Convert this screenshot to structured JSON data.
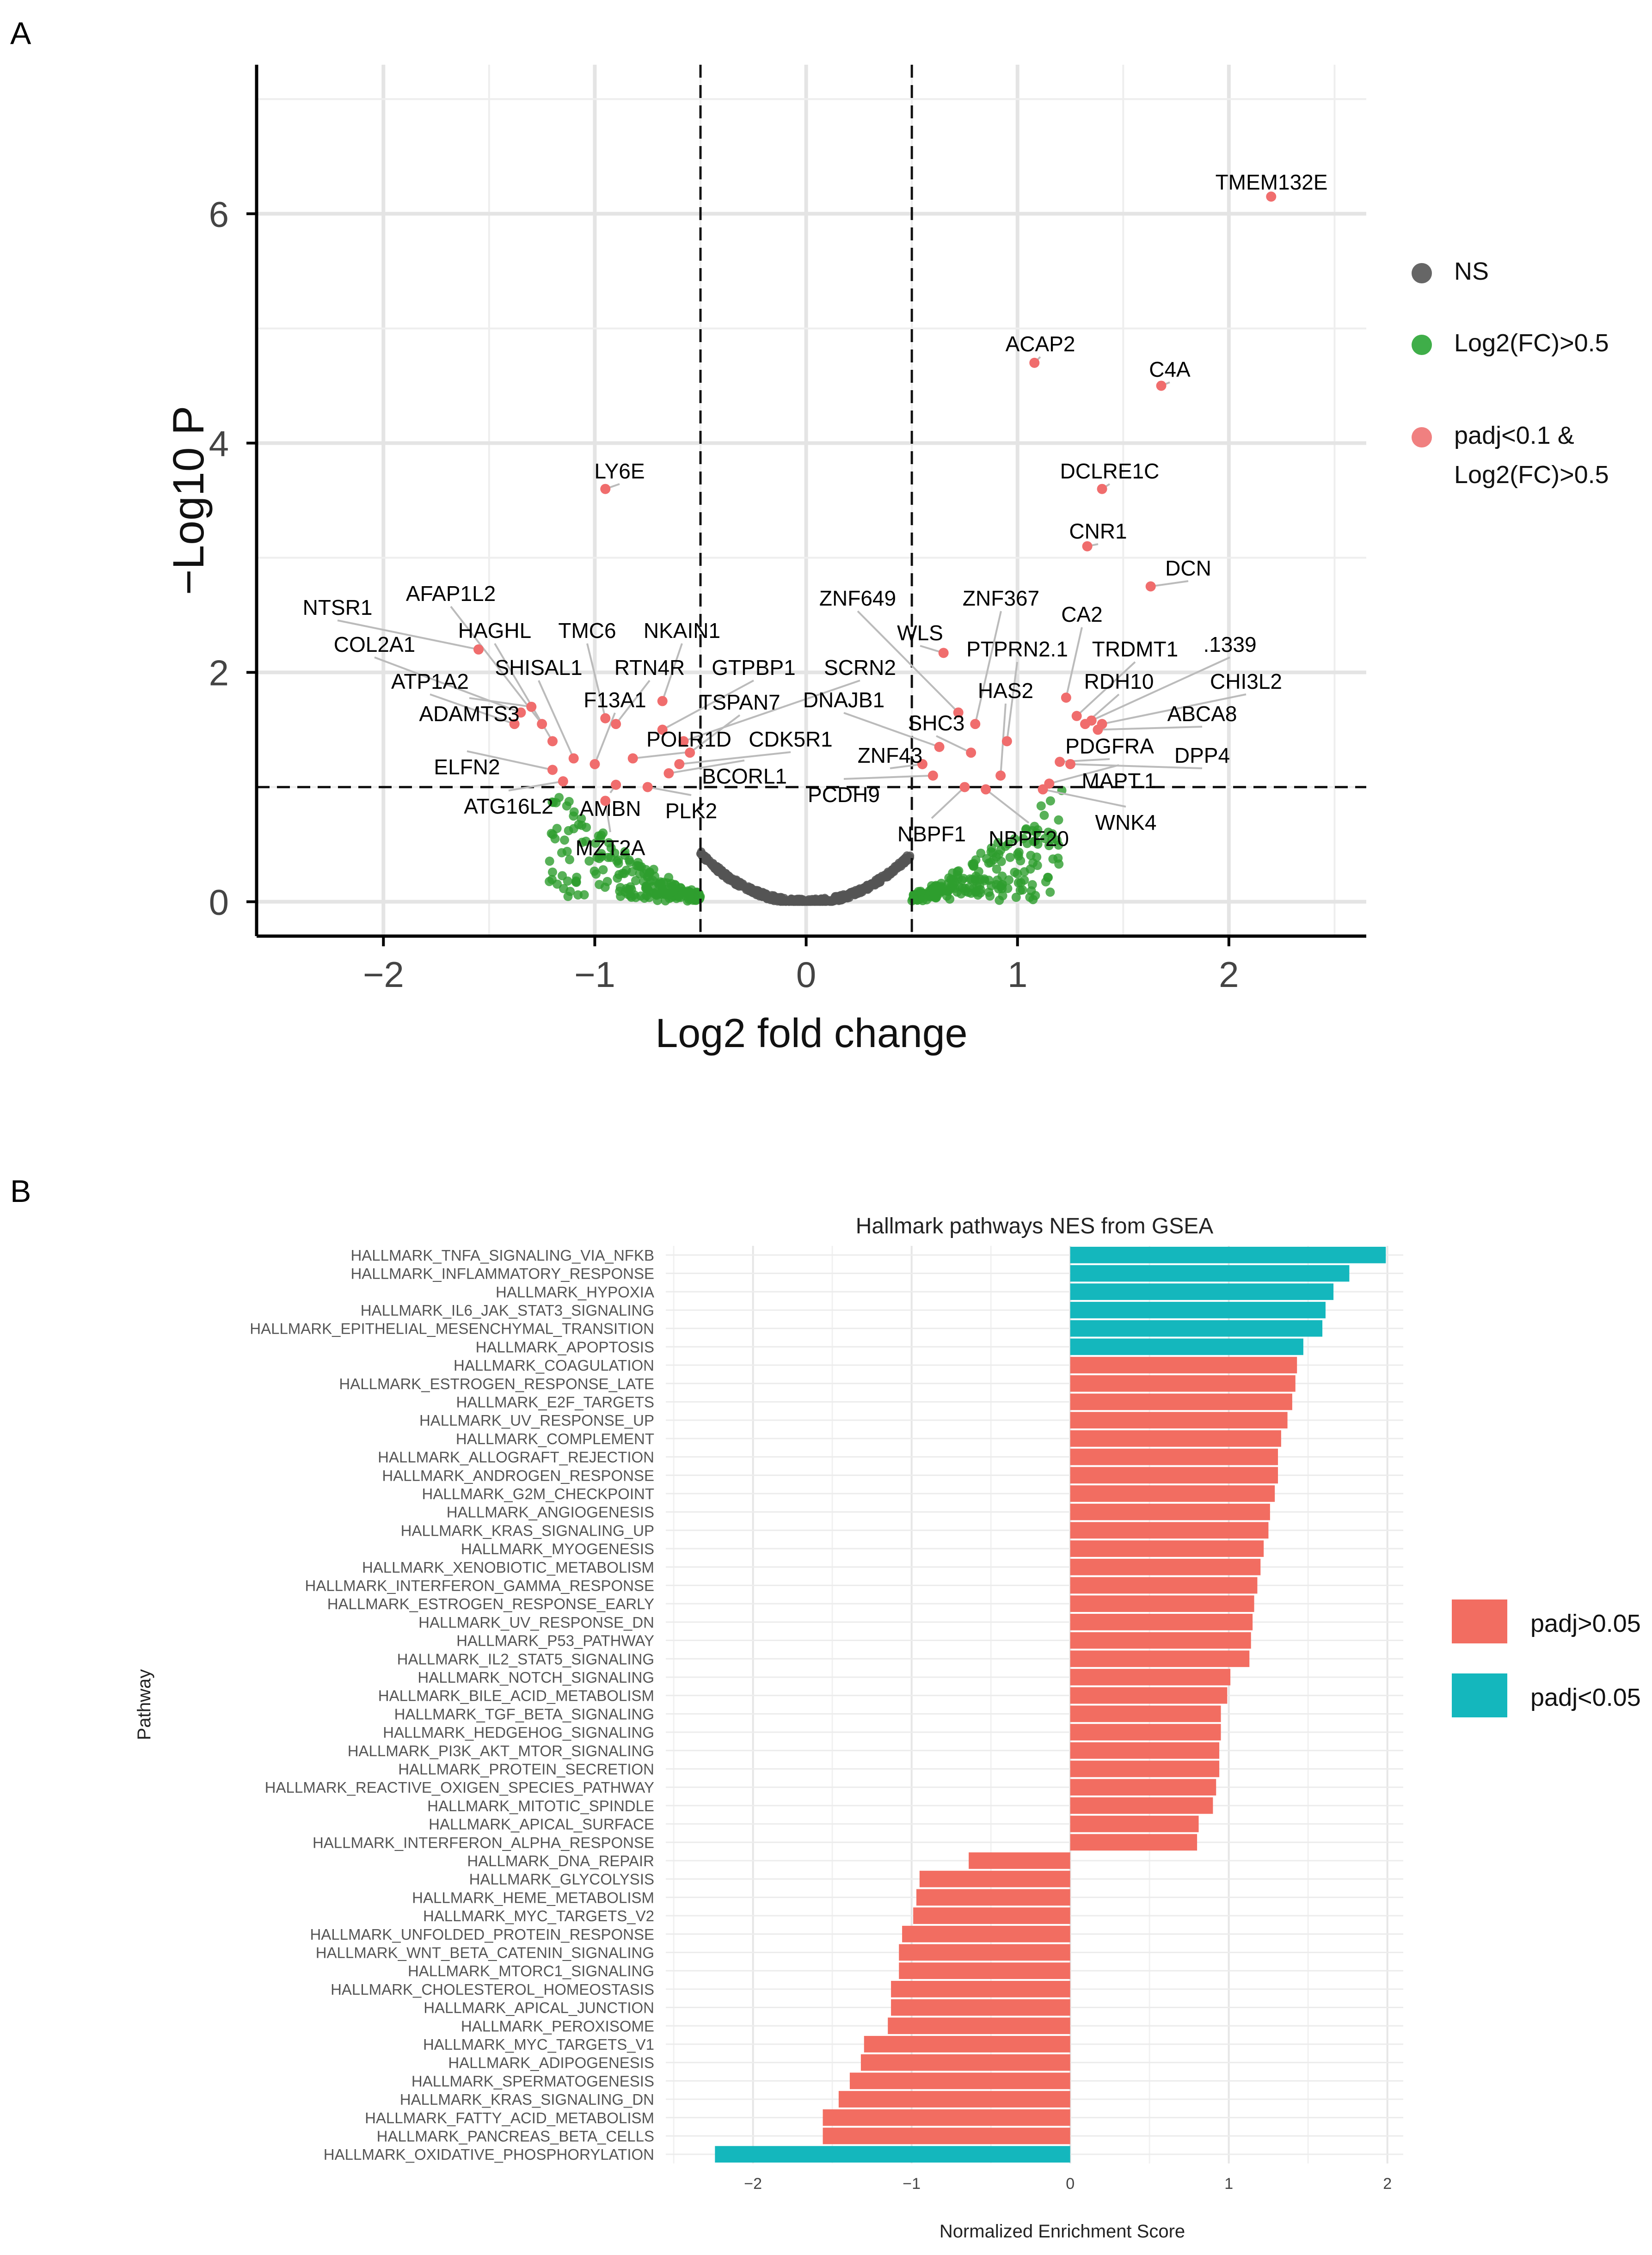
{
  "chart_data": [
    {
      "panel": "A",
      "type": "scatter",
      "xlabel": "Log2 fold change",
      "ylabel": "−Log10 P",
      "xlim": [
        -2.6,
        2.65
      ],
      "ylim": [
        -0.3,
        7.3
      ],
      "xticks": [
        -2,
        -1,
        0,
        1,
        2
      ],
      "xtick_labels": [
        "−2",
        "−1",
        "0",
        "1",
        "2"
      ],
      "yticks": [
        0,
        2,
        4,
        6
      ],
      "ytick_labels": [
        "0",
        "2",
        "4",
        "6"
      ],
      "grid": true,
      "thresholds": {
        "x": [
          -0.5,
          0.5
        ],
        "y": 1.0
      },
      "legend": [
        {
          "label": "NS",
          "color": "#666666"
        },
        {
          "label": "Log2(FC)>0.5",
          "color": "#3fae49"
        },
        {
          "label": "padj<0.1 &",
          "label2": "Log2(FC)>0.5",
          "color": "#f08080"
        }
      ],
      "labeled_points": [
        {
          "gene": "TMEM132E",
          "x": 2.2,
          "y": 6.15
        },
        {
          "gene": "ACAP2",
          "x": 1.08,
          "y": 4.7
        },
        {
          "gene": "C4A",
          "x": 1.68,
          "y": 4.5
        },
        {
          "gene": "DCLRE1C",
          "x": 1.4,
          "y": 3.6
        },
        {
          "gene": "LY6E",
          "x": -0.95,
          "y": 3.6
        },
        {
          "gene": "CNR1",
          "x": 1.33,
          "y": 3.1
        },
        {
          "gene": "DCN",
          "x": 1.63,
          "y": 2.75
        },
        {
          "gene": "CA2",
          "x": 1.23,
          "y": 1.78
        },
        {
          "gene": "TRDMT1",
          "x": 1.28,
          "y": 1.62
        },
        {
          "gene": ".1339",
          "x": 1.35,
          "y": 1.58
        },
        {
          "gene": "RDH10",
          "x": 1.32,
          "y": 1.55
        },
        {
          "gene": "CHI3L2",
          "x": 1.4,
          "y": 1.55
        },
        {
          "gene": "ABCA8",
          "x": 1.38,
          "y": 1.5
        },
        {
          "gene": "PDGFRA",
          "x": 1.2,
          "y": 1.22
        },
        {
          "gene": "DPP4",
          "x": 1.25,
          "y": 1.2
        },
        {
          "gene": "MAPT.1",
          "x": 1.15,
          "y": 1.03
        },
        {
          "gene": "WNK4",
          "x": 1.12,
          "y": 0.98
        },
        {
          "gene": "ZNF649",
          "x": 0.72,
          "y": 1.65
        },
        {
          "gene": "ZNF367",
          "x": 0.8,
          "y": 1.55
        },
        {
          "gene": "WLS",
          "x": 0.65,
          "y": 2.17
        },
        {
          "gene": "PTPRN2.1",
          "x": 0.95,
          "y": 1.4
        },
        {
          "gene": "HAS2",
          "x": 0.92,
          "y": 1.1
        },
        {
          "gene": "DNAJB1",
          "x": 0.63,
          "y": 1.35
        },
        {
          "gene": "SHC3",
          "x": 0.78,
          "y": 1.3
        },
        {
          "gene": "ZNF43",
          "x": 0.55,
          "y": 1.2
        },
        {
          "gene": "PCDH9",
          "x": 0.6,
          "y": 1.1
        },
        {
          "gene": "NBPF1",
          "x": 0.75,
          "y": 1.0
        },
        {
          "gene": "NBPF20",
          "x": 0.85,
          "y": 0.98
        },
        {
          "gene": "NTSR1",
          "x": -1.55,
          "y": 2.2
        },
        {
          "gene": "AFAP1L2",
          "x": -1.25,
          "y": 1.55
        },
        {
          "gene": "HAGHL",
          "x": -1.2,
          "y": 1.4
        },
        {
          "gene": "TMC6",
          "x": -0.95,
          "y": 1.6
        },
        {
          "gene": "NKAIN1",
          "x": -0.68,
          "y": 1.75
        },
        {
          "gene": "COL2A1",
          "x": -1.35,
          "y": 1.65
        },
        {
          "gene": "SHISAL1",
          "x": -1.1,
          "y": 1.25
        },
        {
          "gene": "RTN4R",
          "x": -0.9,
          "y": 1.55
        },
        {
          "gene": "GTPBP1",
          "x": -0.68,
          "y": 1.5
        },
        {
          "gene": "SCRN2",
          "x": -0.58,
          "y": 1.4
        },
        {
          "gene": "ATP1A2",
          "x": -1.38,
          "y": 1.55
        },
        {
          "gene": "F13A1",
          "x": -1.0,
          "y": 1.2
        },
        {
          "gene": "TSPAN7",
          "x": -0.55,
          "y": 1.3
        },
        {
          "gene": "ADAMTS3",
          "x": -1.3,
          "y": 1.7
        },
        {
          "gene": "POLR1D",
          "x": -0.82,
          "y": 1.25
        },
        {
          "gene": "CDK5R1",
          "x": -0.6,
          "y": 1.2
        },
        {
          "gene": "ELFN2",
          "x": -1.2,
          "y": 1.15
        },
        {
          "gene": "BCORL1",
          "x": -0.65,
          "y": 1.12
        },
        {
          "gene": "ATG16L2",
          "x": -1.15,
          "y": 1.05
        },
        {
          "gene": "AMBN",
          "x": -0.9,
          "y": 1.02
        },
        {
          "gene": "PLK2",
          "x": -0.75,
          "y": 1.0
        },
        {
          "gene": "MZT2A",
          "x": -0.95,
          "y": 0.88
        }
      ]
    },
    {
      "panel": "B",
      "type": "bar",
      "orientation": "horizontal",
      "title": "Hallmark pathways NES from GSEA",
      "xlabel": "Normalized Enrichment Score",
      "ylabel": "Pathway",
      "xlim": [
        -2.55,
        2.1
      ],
      "xticks": [
        -2,
        -1,
        0,
        1,
        2
      ],
      "xtick_labels": [
        "−2",
        "−1",
        "0",
        "1",
        "2"
      ],
      "legend": [
        {
          "label": "padj>0.05",
          "color": "#f26d61"
        },
        {
          "label": "padj<0.05",
          "color": "#14b7bd"
        }
      ],
      "categories": [
        "HALLMARK_TNFA_SIGNALING_VIA_NFKB",
        "HALLMARK_INFLAMMATORY_RESPONSE",
        "HALLMARK_HYPOXIA",
        "HALLMARK_IL6_JAK_STAT3_SIGNALING",
        "HALLMARK_EPITHELIAL_MESENCHYMAL_TRANSITION",
        "HALLMARK_APOPTOSIS",
        "HALLMARK_COAGULATION",
        "HALLMARK_ESTROGEN_RESPONSE_LATE",
        "HALLMARK_E2F_TARGETS",
        "HALLMARK_UV_RESPONSE_UP",
        "HALLMARK_COMPLEMENT",
        "HALLMARK_ALLOGRAFT_REJECTION",
        "HALLMARK_ANDROGEN_RESPONSE",
        "HALLMARK_G2M_CHECKPOINT",
        "HALLMARK_ANGIOGENESIS",
        "HALLMARK_KRAS_SIGNALING_UP",
        "HALLMARK_MYOGENESIS",
        "HALLMARK_XENOBIOTIC_METABOLISM",
        "HALLMARK_INTERFERON_GAMMA_RESPONSE",
        "HALLMARK_ESTROGEN_RESPONSE_EARLY",
        "HALLMARK_UV_RESPONSE_DN",
        "HALLMARK_P53_PATHWAY",
        "HALLMARK_IL2_STAT5_SIGNALING",
        "HALLMARK_NOTCH_SIGNALING",
        "HALLMARK_BILE_ACID_METABOLISM",
        "HALLMARK_TGF_BETA_SIGNALING",
        "HALLMARK_HEDGEHOG_SIGNALING",
        "HALLMARK_PI3K_AKT_MTOR_SIGNALING",
        "HALLMARK_PROTEIN_SECRETION",
        "HALLMARK_REACTIVE_OXIGEN_SPECIES_PATHWAY",
        "HALLMARK_MITOTIC_SPINDLE",
        "HALLMARK_APICAL_SURFACE",
        "HALLMARK_INTERFERON_ALPHA_RESPONSE",
        "HALLMARK_DNA_REPAIR",
        "HALLMARK_GLYCOLYSIS",
        "HALLMARK_HEME_METABOLISM",
        "HALLMARK_MYC_TARGETS_V2",
        "HALLMARK_UNFOLDED_PROTEIN_RESPONSE",
        "HALLMARK_WNT_BETA_CATENIN_SIGNALING",
        "HALLMARK_MTORC1_SIGNALING",
        "HALLMARK_CHOLESTEROL_HOMEOSTASIS",
        "HALLMARK_APICAL_JUNCTION",
        "HALLMARK_PEROXISOME",
        "HALLMARK_MYC_TARGETS_V1",
        "HALLMARK_ADIPOGENESIS",
        "HALLMARK_SPERMATOGENESIS",
        "HALLMARK_KRAS_SIGNALING_DN",
        "HALLMARK_FATTY_ACID_METABOLISM",
        "HALLMARK_PANCREAS_BETA_CELLS",
        "HALLMARK_OXIDATIVE_PHOSPHORYLATION"
      ],
      "values": [
        1.99,
        1.76,
        1.66,
        1.61,
        1.59,
        1.47,
        1.43,
        1.42,
        1.4,
        1.37,
        1.33,
        1.31,
        1.31,
        1.29,
        1.26,
        1.25,
        1.22,
        1.2,
        1.18,
        1.16,
        1.15,
        1.14,
        1.13,
        1.01,
        0.99,
        0.95,
        0.95,
        0.94,
        0.94,
        0.92,
        0.9,
        0.81,
        0.8,
        -0.64,
        -0.95,
        -0.97,
        -0.99,
        -1.06,
        -1.08,
        -1.08,
        -1.13,
        -1.13,
        -1.15,
        -1.3,
        -1.32,
        -1.39,
        -1.46,
        -1.56,
        -1.56,
        -2.24
      ],
      "significant": [
        true,
        true,
        true,
        true,
        true,
        true,
        false,
        false,
        false,
        false,
        false,
        false,
        false,
        false,
        false,
        false,
        false,
        false,
        false,
        false,
        false,
        false,
        false,
        false,
        false,
        false,
        false,
        false,
        false,
        false,
        false,
        false,
        false,
        false,
        false,
        false,
        false,
        false,
        false,
        false,
        false,
        false,
        false,
        false,
        false,
        false,
        false,
        false,
        false,
        true
      ]
    }
  ],
  "panel_letters": [
    "A",
    "B"
  ]
}
